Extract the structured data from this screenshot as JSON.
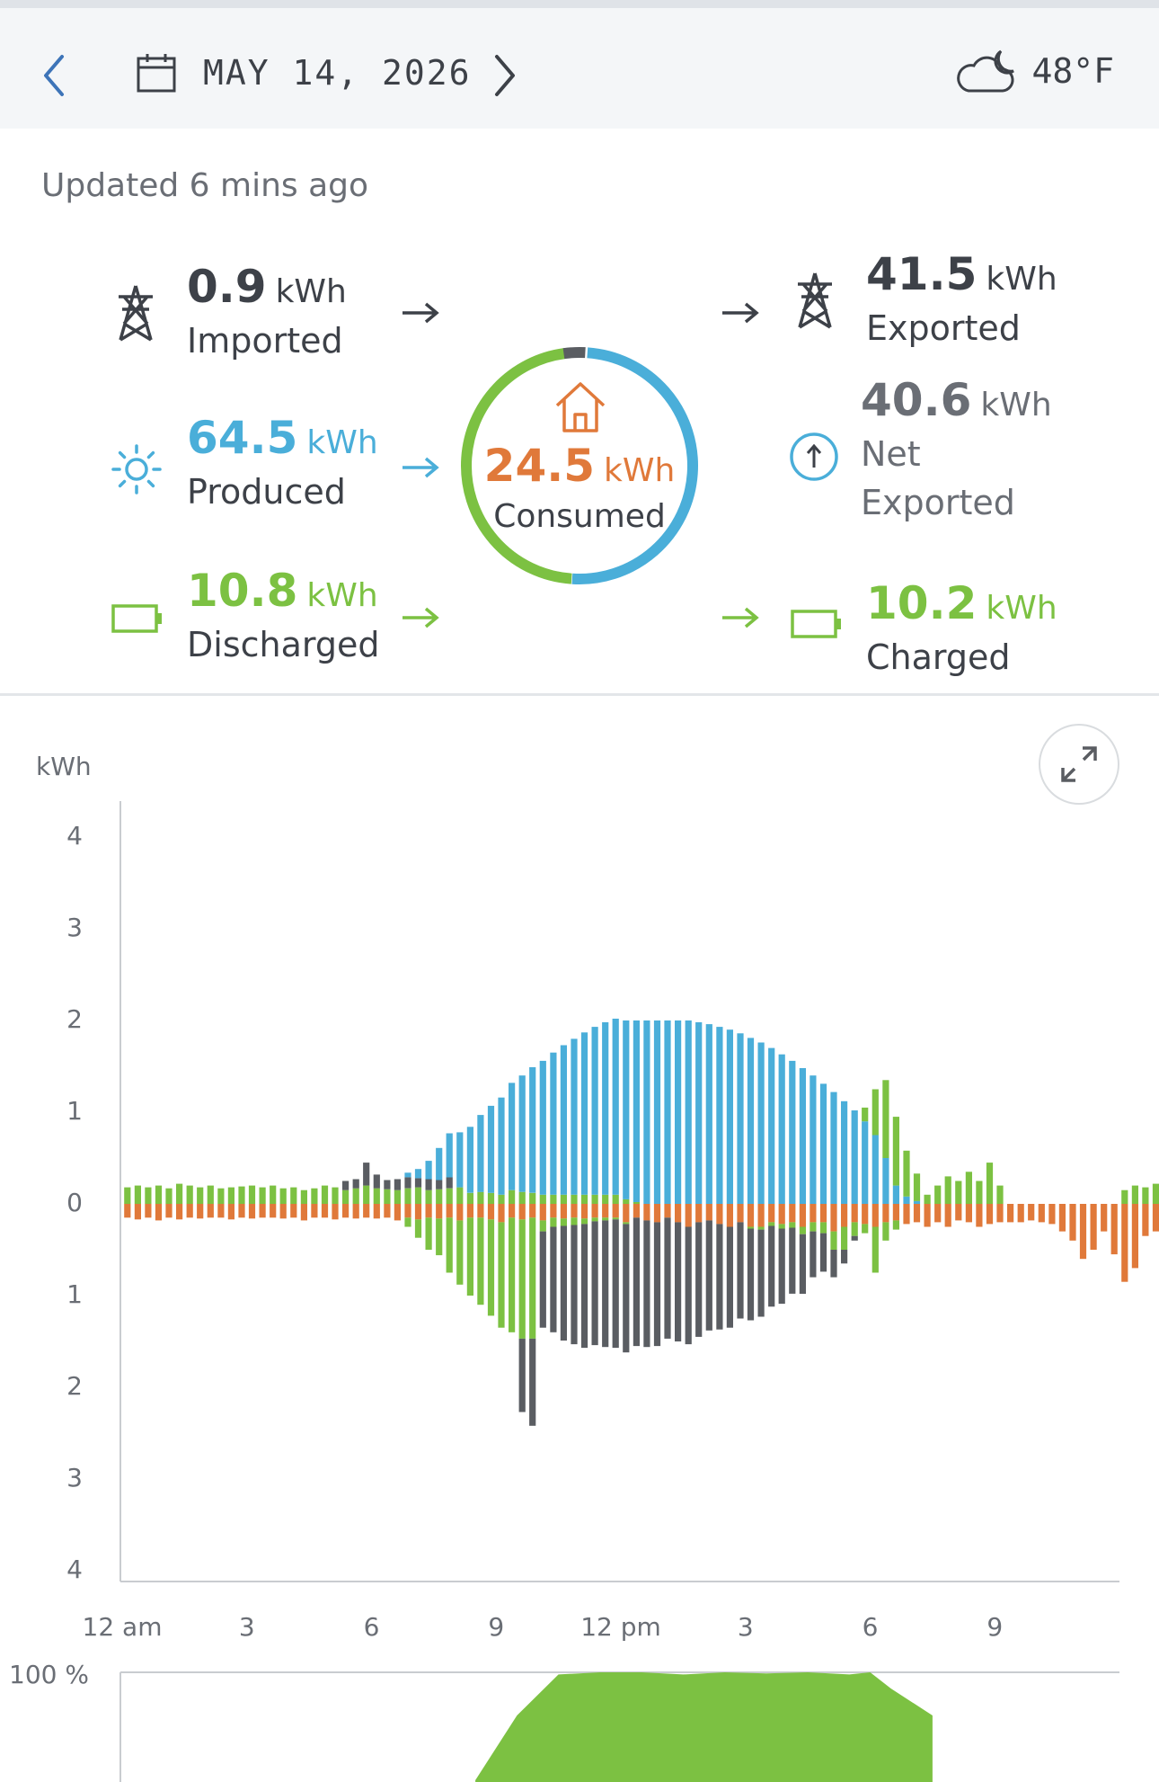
{
  "header": {
    "date": "MAY 14, 2026",
    "temperature": "48°F",
    "prev_icon": "chevron-left-icon",
    "next_icon": "chevron-right-icon",
    "calendar_icon": "calendar-icon",
    "weather_icon": "cloudy-moon-icon"
  },
  "status": {
    "updated": "Updated 6 mins ago"
  },
  "flows": {
    "imported": {
      "value": "0.9",
      "unit": "kWh",
      "label": "Imported",
      "icon": "power-tower-icon"
    },
    "produced": {
      "value": "64.5",
      "unit": "kWh",
      "label": "Produced",
      "icon": "sun-icon"
    },
    "discharged": {
      "value": "10.8",
      "unit": "kWh",
      "label": "Discharged",
      "icon": "battery-icon"
    },
    "consumed": {
      "value": "24.5",
      "unit": "kWh",
      "label": "Consumed",
      "icon": "house-icon"
    },
    "exported": {
      "value": "41.5",
      "unit": "kWh",
      "label": "Exported",
      "icon": "power-tower-icon"
    },
    "net_exported": {
      "value": "40.6",
      "unit": "kWh",
      "label_line1": "Net",
      "label_line2": "Exported",
      "icon": "up-arrow-circle-icon"
    },
    "charged": {
      "value": "10.2",
      "unit": "kWh",
      "label": "Charged",
      "icon": "battery-icon"
    }
  },
  "colors": {
    "solar": "#4aaed9",
    "battery": "#7cc142",
    "home": "#e0793a",
    "grid": "#5a5d62"
  },
  "chart_data": [
    {
      "type": "bar",
      "ylabel": "kWh",
      "ylim": [
        -4,
        4
      ],
      "y_tick_labels": [
        "4",
        "3",
        "2",
        "1",
        "0",
        "1",
        "2",
        "3",
        "4"
      ],
      "x_tick_labels": [
        "12 am",
        "3",
        "6",
        "9",
        "12 pm",
        "3",
        "6",
        "9"
      ],
      "x_start_hour": 0,
      "x_end_hour": 24,
      "interval_minutes": 15,
      "series": [
        {
          "role": "solar",
          "sign": "positive",
          "start_hour": 6.75,
          "values": [
            0.05,
            0.1,
            0.2,
            0.35,
            0.48,
            0.6,
            0.72,
            0.84,
            0.95,
            1.06,
            1.17,
            1.27,
            1.37,
            1.46,
            1.55,
            1.63,
            1.7,
            1.77,
            1.83,
            1.88,
            1.92,
            1.95,
            1.98,
            2.0,
            2.0,
            2.0,
            2.0,
            2.0,
            1.98,
            1.96,
            1.93,
            1.9,
            1.86,
            1.81,
            1.76,
            1.7,
            1.63,
            1.56,
            1.48,
            1.4,
            1.31,
            1.22,
            1.12,
            1.02,
            0.9,
            0.75,
            0.5,
            0.2,
            0.08,
            0.03
          ]
        },
        {
          "role": "battery-charge",
          "sign": "positive",
          "start_hour": 17.75,
          "values": [
            0.15,
            0.5,
            0.85,
            0.75,
            0.5,
            0.3,
            0.1,
            0.2,
            0.3,
            0.25,
            0.35,
            0.25,
            0.45,
            0.2
          ]
        },
        {
          "role": "battery-discharge",
          "sign": "positive",
          "start_hour": 0,
          "values": [
            0.18,
            0.2,
            0.18,
            0.2,
            0.17,
            0.22,
            0.2,
            0.18,
            0.2,
            0.17,
            0.18,
            0.19,
            0.2,
            0.18,
            0.2,
            0.17,
            0.18,
            0.15,
            0.17,
            0.2,
            0.18,
            0.15,
            0.17,
            0.2,
            0.17,
            0.16,
            0.15,
            0.17,
            0.18,
            0.15,
            0.16,
            0.17,
            0.18,
            0.12,
            0.13,
            0.12,
            0.1,
            0.15,
            0.13,
            0.12,
            0.1,
            0.1,
            0.1,
            0.1,
            0.1,
            0.1,
            0.1,
            0.1,
            0.05,
            0.02,
            0.0,
            0.0,
            0.0,
            0.0,
            0.0,
            0.0,
            0.0,
            0.0,
            0.0,
            0.0,
            0.0,
            0.0,
            0.0,
            0.0,
            0.0,
            0.0,
            0.0,
            0.0,
            0.0,
            0.0,
            0.0,
            0.0,
            0.0,
            0.0,
            0.0,
            0.0,
            0.0,
            0.0,
            0.0,
            0.0,
            0.0,
            0.0,
            0.0,
            0.0,
            0.0,
            0.0,
            0.0,
            0.0,
            0.0,
            0.0,
            0.0,
            0.0,
            0.0,
            0.0,
            0.0,
            0.0,
            0.15,
            0.2,
            0.18,
            0.22,
            0.2,
            0.2,
            0.22,
            0.18,
            0.2,
            0.17,
            0.2,
            0.22,
            0.18,
            0.2,
            0.2,
            0.2,
            0.2,
            0.2,
            0.18,
            0.2,
            0.2,
            0.2,
            0.18,
            0.2,
            0.18,
            0.2,
            0.17,
            0.2,
            0.2
          ]
        },
        {
          "role": "grid-import",
          "sign": "positive",
          "start_hour": 13.5,
          "values": [
            0.0
          ]
        },
        {
          "role": "home",
          "sign": "negative",
          "start_hour": 0,
          "values": [
            0.15,
            0.17,
            0.15,
            0.18,
            0.15,
            0.17,
            0.15,
            0.16,
            0.15,
            0.15,
            0.17,
            0.15,
            0.16,
            0.15,
            0.15,
            0.16,
            0.15,
            0.18,
            0.15,
            0.15,
            0.17,
            0.15,
            0.16,
            0.15,
            0.16,
            0.15,
            0.18,
            0.15,
            0.17,
            0.15,
            0.16,
            0.15,
            0.18,
            0.15,
            0.15,
            0.17,
            0.2,
            0.15,
            0.17,
            0.15,
            0.18,
            0.15,
            0.16,
            0.15,
            0.16,
            0.15,
            0.15,
            0.15,
            0.2,
            0.15,
            0.18,
            0.2,
            0.15,
            0.2,
            0.25,
            0.2,
            0.18,
            0.22,
            0.25,
            0.2,
            0.25,
            0.25,
            0.2,
            0.22,
            0.2,
            0.25,
            0.2,
            0.2,
            0.3,
            0.25,
            0.2,
            0.22,
            0.25,
            0.2,
            0.18,
            0.22,
            0.2,
            0.25,
            0.2,
            0.25,
            0.18,
            0.2,
            0.25,
            0.22,
            0.2,
            0.2,
            0.2,
            0.18,
            0.2,
            0.22,
            0.3,
            0.4,
            0.6,
            0.5,
            0.3,
            0.55,
            0.85,
            0.7,
            0.35,
            0.3,
            0.25,
            0.4,
            0.35,
            0.25,
            0.2,
            0.3,
            0.25,
            0.3,
            0.2,
            0.3,
            0.25,
            0.3,
            0.2,
            0.25,
            0.22,
            0.25,
            0.2,
            0.22,
            0.2,
            0.18,
            0.2,
            0.18,
            0.2,
            0.22
          ]
        },
        {
          "role": "battery-charge-neg",
          "sign": "negative",
          "start_hour": 6.75,
          "values": [
            0.1,
            0.2,
            0.35,
            0.4,
            0.6,
            0.7,
            0.85,
            0.95,
            1.05,
            1.15,
            1.25,
            1.3,
            1.32,
            0.12,
            0.1,
            0.08,
            0.08,
            0.06,
            0.04,
            0.03,
            0.02,
            0.02,
            0.0,
            0.0,
            0.0,
            0.0,
            0.0,
            0.0,
            0.0,
            0.0,
            0.0,
            0.0,
            0.0,
            0.02,
            0.03,
            0.04,
            0.05,
            0.06,
            0.08,
            0.1,
            0.12,
            0.2,
            0.25,
            0.15,
            0.1,
            0.5,
            0.2,
            0.1,
            0.0,
            0.0
          ]
        },
        {
          "role": "grid-export",
          "sign": "negative",
          "start_hour": 9.5,
          "values": [
            0.8,
            0.95,
            1.05,
            1.15,
            1.25,
            1.3,
            1.35,
            1.35,
            1.38,
            1.4,
            1.4,
            1.4,
            1.38,
            1.35,
            1.32,
            1.3,
            1.28,
            1.25,
            1.2,
            1.15,
            1.1,
            1.05,
            1.0,
            0.95,
            0.88,
            0.82,
            0.72,
            0.65,
            0.5,
            0.42,
            0.3,
            0.15,
            0.05,
            0.0
          ]
        },
        {
          "role": "grid-consumption",
          "sign": "positive",
          "start_hour": 5.25,
          "values": [
            0.1,
            0.1,
            0.25,
            0.15,
            0.1,
            0.12,
            0.12,
            0.1,
            0.12,
            0.1,
            0.12
          ]
        }
      ]
    },
    {
      "type": "area",
      "ylabel": "100 %",
      "ylim": [
        0,
        100
      ],
      "x": [
        8.5,
        9.5,
        10.5,
        11.5,
        12.5,
        13.5,
        14.5,
        15.5,
        16.5,
        17.5,
        18.0,
        18.5,
        19.5
      ],
      "values": [
        0,
        60,
        98,
        100,
        100,
        98,
        100,
        99,
        100,
        98,
        100,
        85,
        60
      ]
    }
  ]
}
